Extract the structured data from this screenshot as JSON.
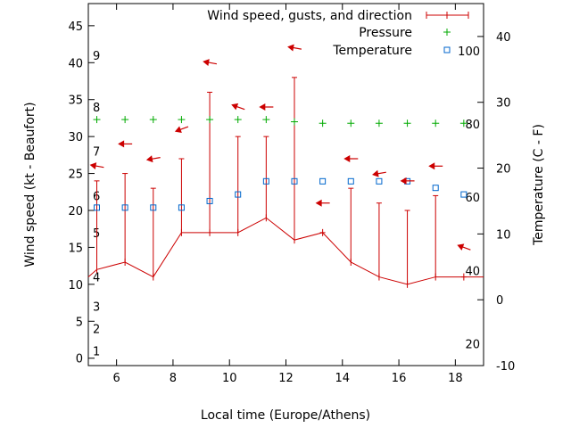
{
  "chart_data": {
    "type": "line",
    "xlabel": "Local time (Europe/Athens)",
    "ylabel": "Wind speed (kt - Beaufort)",
    "y2label": "Temperature (C - F)",
    "xlim": [
      5,
      19
    ],
    "ylim": [
      -1,
      48
    ],
    "y2lim": [
      -10,
      45
    ],
    "xticks": [
      6,
      8,
      10,
      12,
      14,
      16,
      18
    ],
    "yticks": [
      0,
      5,
      10,
      15,
      20,
      25,
      30,
      35,
      40,
      45
    ],
    "y2ticks": [
      -10,
      0,
      10,
      20,
      30,
      40
    ],
    "beaufort_labels": [
      {
        "label": "1",
        "y": 1
      },
      {
        "label": "2",
        "y": 4
      },
      {
        "label": "3",
        "y": 7
      },
      {
        "label": "4",
        "y": 11
      },
      {
        "label": "5",
        "y": 17
      },
      {
        "label": "6",
        "y": 22
      },
      {
        "label": "7",
        "y": 28
      },
      {
        "label": "8",
        "y": 34
      },
      {
        "label": "9",
        "y": 41
      }
    ],
    "fahrenheit_labels": [
      {
        "label": "20",
        "y2": -6.7
      },
      {
        "label": "40",
        "y2": 4.4
      },
      {
        "label": "60",
        "y2": 15.6
      },
      {
        "label": "80",
        "y2": 26.7
      },
      {
        "label": "100",
        "y2": 37.8
      }
    ],
    "legend": {
      "position": "top-right",
      "entries": [
        {
          "label": "Wind speed, gusts, and direction",
          "color": "#cc0000"
        },
        {
          "label": "Pressure",
          "color": "#00aa00"
        },
        {
          "label": "Temperature",
          "color": "#0066cc"
        }
      ]
    },
    "series": [
      {
        "name": "Wind speed, gusts, and direction",
        "color": "#cc0000",
        "x": [
          5.3,
          6.3,
          7.3,
          8.3,
          9.3,
          10.3,
          11.3,
          12.3,
          13.3,
          14.3,
          15.3,
          16.3,
          17.3,
          18.3
        ],
        "speed": [
          12,
          13,
          11,
          17,
          17,
          17,
          19,
          16,
          17,
          13,
          11,
          10,
          11,
          11
        ],
        "gust": [
          24,
          25,
          23,
          27,
          36,
          30,
          30,
          38,
          17,
          23,
          21,
          20,
          22,
          11
        ],
        "arrows": [
          {
            "x": 5.3,
            "y": 26,
            "angle": 190
          },
          {
            "x": 6.3,
            "y": 29,
            "angle": 180
          },
          {
            "x": 7.3,
            "y": 27,
            "angle": 170
          },
          {
            "x": 8.3,
            "y": 31,
            "angle": 160
          },
          {
            "x": 9.3,
            "y": 40,
            "angle": 190
          },
          {
            "x": 10.3,
            "y": 34,
            "angle": 200
          },
          {
            "x": 11.3,
            "y": 34,
            "angle": 180
          },
          {
            "x": 12.3,
            "y": 42,
            "angle": 190
          },
          {
            "x": 13.3,
            "y": 21,
            "angle": 180
          },
          {
            "x": 14.3,
            "y": 27,
            "angle": 180
          },
          {
            "x": 15.3,
            "y": 25,
            "angle": 170
          },
          {
            "x": 16.3,
            "y": 24,
            "angle": 180
          },
          {
            "x": 17.3,
            "y": 26,
            "angle": 180
          },
          {
            "x": 18.3,
            "y": 15,
            "angle": 200
          }
        ]
      },
      {
        "name": "Pressure",
        "color": "#00aa00",
        "x": [
          5.3,
          6.3,
          7.3,
          8.3,
          9.3,
          10.3,
          11.3,
          12.3,
          13.3,
          14.3,
          15.3,
          16.3,
          17.3,
          18.3
        ],
        "y": [
          32.3,
          32.3,
          32.3,
          32.3,
          32.3,
          32.3,
          32.3,
          32.0,
          31.8,
          31.8,
          31.8,
          31.8,
          31.8,
          31.8
        ]
      },
      {
        "name": "Temperature",
        "color": "#0066cc",
        "x": [
          5.3,
          6.3,
          7.3,
          8.3,
          9.3,
          10.3,
          11.3,
          12.3,
          13.3,
          14.3,
          15.3,
          16.3,
          17.3,
          18.3
        ],
        "y2": [
          14,
          14,
          14,
          14,
          15,
          16,
          18,
          18,
          18,
          18,
          18,
          18,
          17,
          16
        ]
      }
    ]
  }
}
